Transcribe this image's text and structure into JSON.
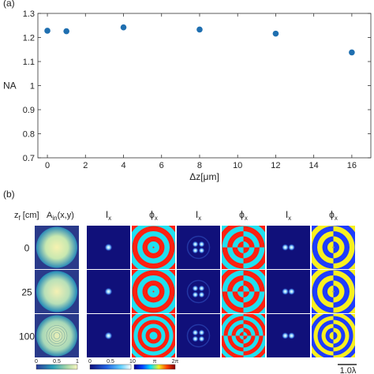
{
  "panel_a": {
    "label": "(a)",
    "chart_data": {
      "type": "scatter",
      "xlabel": "Δz[μm]",
      "ylabel": "NA",
      "xlim": [
        -0.5,
        17
      ],
      "ylim": [
        0.7,
        1.3
      ],
      "x_ticks": [
        "0",
        "2",
        "4",
        "6",
        "8",
        "10",
        "12",
        "14",
        "16"
      ],
      "y_ticks": [
        "0.7",
        "0.8",
        "0.9",
        "1",
        "1.1",
        "1.2",
        "1.3"
      ],
      "grid": false,
      "marker_color": "#1f6fb0",
      "x": [
        0,
        1,
        4,
        8,
        12,
        16
      ],
      "y": [
        1.228,
        1.226,
        1.242,
        1.233,
        1.216,
        1.138
      ]
    }
  },
  "panel_b": {
    "label": "(b)",
    "header_z": "z",
    "header_z_sub": "f",
    "header_z_unit": " [cm]",
    "header_a": "A",
    "header_a_sub": "in",
    "header_a_args": "(x,y)",
    "row_labels": [
      "0",
      "25",
      "100"
    ],
    "column_titles": [
      {
        "sym": "I",
        "sub": "x"
      },
      {
        "sym": "ϕ",
        "sub": "x"
      },
      {
        "sym": "I",
        "sub": "x"
      },
      {
        "sym": "ϕ",
        "sub": "x"
      },
      {
        "sym": "I",
        "sub": "x"
      },
      {
        "sym": "ϕ",
        "sub": "x"
      }
    ],
    "colorbar_left_ticks": [
      "0",
      "0.5",
      "1"
    ],
    "colorbar_mid_ticks": [
      "0",
      "0.5",
      "1"
    ],
    "colorbar_phase_ticks": [
      "0",
      "π",
      "2π"
    ],
    "scale_bar": "1.0λ",
    "colors": {
      "phase_blue": "#1e3cff",
      "phase_cyan": "#20e0f0",
      "phase_red": "#ff2010",
      "phase_yellow": "#f8f020",
      "intensity_bg": "#10107a"
    }
  }
}
